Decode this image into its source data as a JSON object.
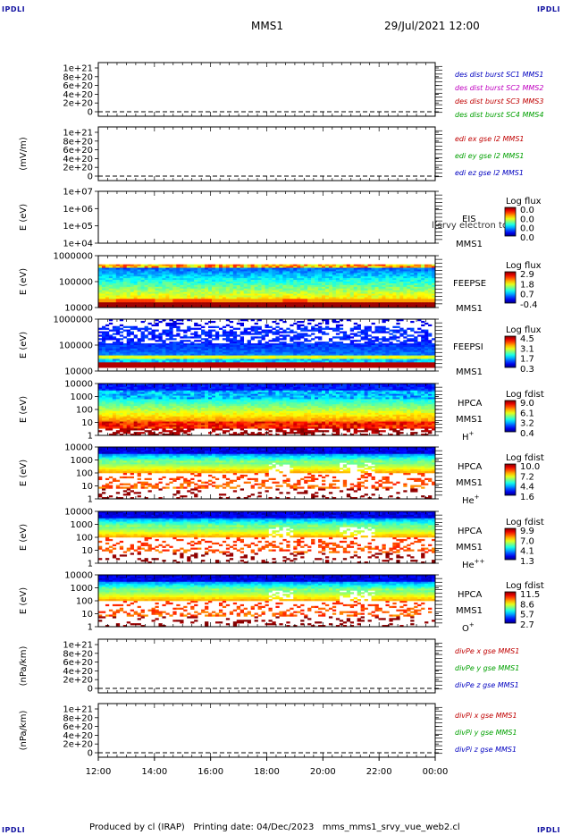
{
  "corner_label": "IPDLI",
  "header": {
    "mission": "MMS1",
    "datetime": "29/Jul/2021 12:00"
  },
  "footer": {
    "produced": "Produced by cl (IRAP)",
    "printing": "Printing date: 04/Dec/2023",
    "script": "mms_mms1_srvy_vue_web2.cl"
  },
  "x_ticks": [
    "12:00",
    "14:00",
    "16:00",
    "18:00",
    "20:00",
    "22:00",
    "00:00"
  ],
  "chart_data": [
    {
      "type": "line",
      "ylabel": "",
      "y_ticks": [
        "1e+21",
        "8e+20",
        "6e+20",
        "4e+20",
        "2e+20",
        "0"
      ],
      "ylim": [
        0,
        1e+21
      ],
      "legend": [
        {
          "text": "des dist burst SC1 MMS1",
          "color": "#0000c0"
        },
        {
          "text": "des dist burst SC2 MMS2",
          "color": "#c000c0"
        },
        {
          "text": "des dist burst SC3 MMS3",
          "color": "#c00000"
        },
        {
          "text": "des dist burst SC4 MMS4",
          "color": "#00a000"
        }
      ]
    },
    {
      "type": "line",
      "ylabel": "(mV/m)",
      "y_ticks": [
        "1e+21",
        "8e+20",
        "6e+20",
        "4e+20",
        "2e+20",
        "0"
      ],
      "ylim": [
        0,
        1e+21
      ],
      "legend": [
        {
          "text": "edi ex gse l2 MMS1",
          "color": "#c00000"
        },
        {
          "text": "edi ey gse l2 MMS1",
          "color": "#00a000"
        },
        {
          "text": "edi ez gse l2 MMS1",
          "color": "#0000c0"
        }
      ]
    },
    {
      "type": "heatmap",
      "ylabel": "E (eV)",
      "y_ticks": [
        "1e+07",
        "1e+06",
        "1e+05",
        "1e+04"
      ],
      "ylim": [
        10000.0,
        10000000.0
      ],
      "log_y": true,
      "labels": [
        "EIS",
        "MMS1"
      ],
      "overlay": "l(srvy electron to",
      "cbar_title": "Log flux",
      "cbar_ticks": [
        "0.0",
        "0.0",
        "0.0",
        "0.0"
      ]
    },
    {
      "type": "heatmap",
      "ylabel": "E (eV)",
      "y_ticks": [
        "1000000",
        "100000",
        "10000"
      ],
      "ylim": [
        10000.0,
        1000000.0
      ],
      "log_y": true,
      "labels": [
        "FEEPSE",
        "MMS1"
      ],
      "cbar_title": "Log flux",
      "cbar_ticks": [
        "2.9",
        "1.8",
        "0.7",
        "-0.4"
      ]
    },
    {
      "type": "heatmap",
      "ylabel": "E (eV)",
      "y_ticks": [
        "1000000",
        "100000",
        "10000"
      ],
      "ylim": [
        10000.0,
        1000000.0
      ],
      "log_y": true,
      "labels": [
        "FEEPSI",
        "MMS1"
      ],
      "cbar_title": "Log flux",
      "cbar_ticks": [
        "4.5",
        "3.1",
        "1.7",
        "0.3"
      ]
    },
    {
      "type": "heatmap",
      "ylabel": "E (eV)",
      "y_ticks": [
        "10000",
        "1000",
        "100",
        "10",
        "1"
      ],
      "ylim": [
        1,
        20000.0
      ],
      "log_y": true,
      "labels": [
        "HPCA",
        "MMS1"
      ],
      "species": "H",
      "charge": "+",
      "cbar_title": "Log fdist",
      "cbar_ticks": [
        "9.0",
        "6.1",
        "3.2",
        "0.4"
      ]
    },
    {
      "type": "heatmap",
      "ylabel": "E (eV)",
      "y_ticks": [
        "10000",
        "1000",
        "100",
        "10",
        "1"
      ],
      "ylim": [
        1,
        20000.0
      ],
      "log_y": true,
      "labels": [
        "HPCA",
        "MMS1"
      ],
      "species": "He",
      "charge": "+",
      "cbar_title": "Log fdist",
      "cbar_ticks": [
        "10.0",
        "7.2",
        "4.4",
        "1.6"
      ]
    },
    {
      "type": "heatmap",
      "ylabel": "E (eV)",
      "y_ticks": [
        "10000",
        "1000",
        "100",
        "10",
        "1"
      ],
      "ylim": [
        1,
        20000.0
      ],
      "log_y": true,
      "labels": [
        "HPCA",
        "MMS1"
      ],
      "species": "He",
      "charge": "++",
      "cbar_title": "Log fdist",
      "cbar_ticks": [
        "9.9",
        "7.0",
        "4.1",
        "1.3"
      ]
    },
    {
      "type": "heatmap",
      "ylabel": "E (eV)",
      "y_ticks": [
        "10000",
        "1000",
        "100",
        "10",
        "1"
      ],
      "ylim": [
        1,
        20000.0
      ],
      "log_y": true,
      "labels": [
        "HPCA",
        "MMS1"
      ],
      "species": "O",
      "charge": "+",
      "cbar_title": "Log fdist",
      "cbar_ticks": [
        "11.5",
        "8.6",
        "5.7",
        "2.7"
      ]
    },
    {
      "type": "line",
      "ylabel": "(nPa/km)",
      "y_ticks": [
        "1e+21",
        "8e+20",
        "6e+20",
        "4e+20",
        "2e+20",
        "0"
      ],
      "ylim": [
        0,
        1e+21
      ],
      "legend": [
        {
          "text": "divPe x gse MMS1",
          "color": "#c00000"
        },
        {
          "text": "divPe y gse MMS1",
          "color": "#00a000"
        },
        {
          "text": "divPe z gse MMS1",
          "color": "#0000c0"
        }
      ]
    },
    {
      "type": "line",
      "ylabel": "(nPa/km)",
      "y_ticks": [
        "1e+21",
        "8e+20",
        "6e+20",
        "4e+20",
        "2e+20",
        "0"
      ],
      "ylim": [
        0,
        1e+21
      ],
      "legend": [
        {
          "text": "divPi x gse MMS1",
          "color": "#c00000"
        },
        {
          "text": "divPi y gse MMS1",
          "color": "#00a000"
        },
        {
          "text": "divPi z gse MMS1",
          "color": "#0000c0"
        }
      ]
    }
  ]
}
